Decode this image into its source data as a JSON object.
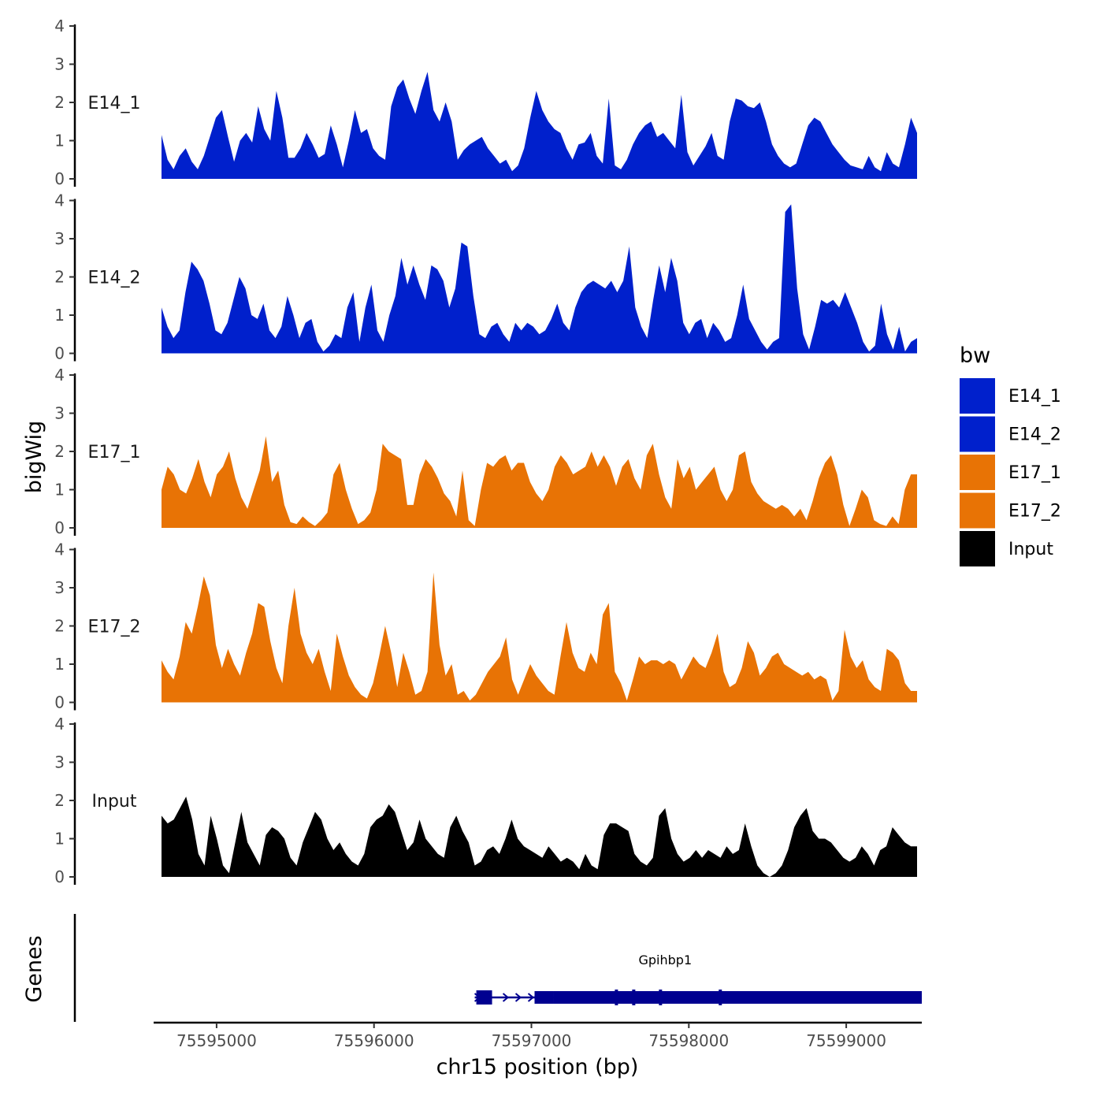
{
  "chart_data": {
    "type": "area",
    "subtype": "genome-browser-coverage-tracks",
    "xlabel": "chr15 position (bp)",
    "ylabel": "bigWig",
    "gene_track_label": "Genes",
    "xlim": [
      75594600,
      75599480
    ],
    "x_ticks": [
      75595000,
      75596000,
      75597000,
      75598000,
      75599000
    ],
    "x_tick_labels": [
      "75595000",
      "75596000",
      "75597000",
      "75598000",
      "75599000"
    ],
    "ylim": [
      0,
      4
    ],
    "y_ticks": [
      0,
      1,
      2,
      3,
      4
    ],
    "y_tick_labels": [
      "0",
      "1",
      "2",
      "3",
      "4"
    ],
    "legend": {
      "title": "bw",
      "position": "right",
      "entries": [
        {
          "label": "E14_1",
          "color": "#0020CC"
        },
        {
          "label": "E14_2",
          "color": "#0020CC"
        },
        {
          "label": "E17_1",
          "color": "#E87305"
        },
        {
          "label": "E17_2",
          "color": "#E87305"
        },
        {
          "label": "Input",
          "color": "#000000"
        }
      ]
    },
    "series": [
      {
        "name": "E14_1",
        "color": "#0020CC",
        "x_start": 75594650,
        "x_end": 75599450,
        "values": [
          1.15,
          0.5,
          0.25,
          0.6,
          0.8,
          0.45,
          0.25,
          0.6,
          1.1,
          1.6,
          1.8,
          1.1,
          0.45,
          1.0,
          1.2,
          0.95,
          1.9,
          1.3,
          1.0,
          2.3,
          1.6,
          0.55,
          0.55,
          0.8,
          1.2,
          0.9,
          0.55,
          0.65,
          1.4,
          0.9,
          0.3,
          1.0,
          1.8,
          1.2,
          1.3,
          0.8,
          0.6,
          0.5,
          1.9,
          2.4,
          2.6,
          2.1,
          1.7,
          2.3,
          2.8,
          1.8,
          1.5,
          2.0,
          1.5,
          0.5,
          0.75,
          0.9,
          1.0,
          1.1,
          0.8,
          0.6,
          0.4,
          0.5,
          0.2,
          0.35,
          0.8,
          1.6,
          2.3,
          1.8,
          1.5,
          1.3,
          1.2,
          0.8,
          0.5,
          0.9,
          0.95,
          1.2,
          0.6,
          0.4,
          2.1,
          0.35,
          0.25,
          0.5,
          0.9,
          1.2,
          1.4,
          1.5,
          1.1,
          1.2,
          1.0,
          0.8,
          2.2,
          0.7,
          0.35,
          0.6,
          0.85,
          1.2,
          0.6,
          0.5,
          1.5,
          2.1,
          2.05,
          1.9,
          1.85,
          2.0,
          1.5,
          0.9,
          0.6,
          0.4,
          0.3,
          0.4,
          0.9,
          1.4,
          1.6,
          1.5,
          1.2,
          0.9,
          0.7,
          0.5,
          0.35,
          0.3,
          0.25,
          0.6,
          0.3,
          0.2,
          0.7,
          0.4,
          0.3,
          0.9,
          1.6,
          1.2
        ]
      },
      {
        "name": "E14_2",
        "color": "#0020CC",
        "x_start": 75594650,
        "x_end": 75599450,
        "values": [
          1.2,
          0.7,
          0.4,
          0.6,
          1.6,
          2.4,
          2.2,
          1.9,
          1.3,
          0.6,
          0.5,
          0.8,
          1.4,
          2.0,
          1.7,
          1.0,
          0.9,
          1.3,
          0.6,
          0.4,
          0.7,
          1.5,
          1.0,
          0.4,
          0.8,
          0.9,
          0.3,
          0.05,
          0.2,
          0.5,
          0.4,
          1.2,
          1.6,
          0.3,
          1.2,
          1.8,
          0.6,
          0.3,
          1.0,
          1.5,
          2.5,
          1.8,
          2.3,
          1.8,
          1.4,
          2.3,
          2.2,
          1.9,
          1.2,
          1.7,
          2.9,
          2.8,
          1.5,
          0.5,
          0.4,
          0.7,
          0.8,
          0.5,
          0.3,
          0.8,
          0.6,
          0.8,
          0.7,
          0.5,
          0.6,
          0.9,
          1.3,
          0.8,
          0.6,
          1.2,
          1.6,
          1.8,
          1.9,
          1.8,
          1.7,
          1.9,
          1.6,
          1.9,
          2.8,
          1.2,
          0.7,
          0.4,
          1.4,
          2.3,
          1.6,
          2.5,
          1.9,
          0.8,
          0.5,
          0.8,
          0.9,
          0.4,
          0.8,
          0.6,
          0.3,
          0.4,
          1.0,
          1.8,
          0.9,
          0.6,
          0.3,
          0.1,
          0.3,
          0.4,
          3.7,
          3.9,
          1.7,
          0.5,
          0.1,
          0.7,
          1.4,
          1.3,
          1.4,
          1.2,
          1.6,
          1.2,
          0.8,
          0.3,
          0.05,
          0.2,
          1.3,
          0.5,
          0.1,
          0.7,
          0.05,
          0.3,
          0.4
        ]
      },
      {
        "name": "E17_1",
        "color": "#E87305",
        "x_start": 75594650,
        "x_end": 75599450,
        "values": [
          1.0,
          1.6,
          1.4,
          1.0,
          0.9,
          1.3,
          1.8,
          1.2,
          0.8,
          1.4,
          1.6,
          2.0,
          1.3,
          0.8,
          0.5,
          1.0,
          1.5,
          2.4,
          1.2,
          1.5,
          0.6,
          0.15,
          0.1,
          0.3,
          0.15,
          0.05,
          0.2,
          0.4,
          1.4,
          1.7,
          1.0,
          0.5,
          0.1,
          0.2,
          0.4,
          1.0,
          2.2,
          2.0,
          1.9,
          1.8,
          0.6,
          0.6,
          1.4,
          1.8,
          1.6,
          1.3,
          0.9,
          0.7,
          0.3,
          1.5,
          0.2,
          0.05,
          1.0,
          1.7,
          1.6,
          1.8,
          1.9,
          1.5,
          1.7,
          1.7,
          1.2,
          0.9,
          0.7,
          1.0,
          1.6,
          1.9,
          1.7,
          1.4,
          1.5,
          1.6,
          2.0,
          1.6,
          1.9,
          1.6,
          1.1,
          1.6,
          1.8,
          1.3,
          1.0,
          1.9,
          2.2,
          1.4,
          0.8,
          0.5,
          1.8,
          1.3,
          1.6,
          1.0,
          1.2,
          1.4,
          1.6,
          1.0,
          0.7,
          1.0,
          1.9,
          2.0,
          1.2,
          0.9,
          0.7,
          0.6,
          0.5,
          0.6,
          0.5,
          0.3,
          0.5,
          0.2,
          0.7,
          1.3,
          1.7,
          1.9,
          1.4,
          0.6,
          0.05,
          0.5,
          1.0,
          0.8,
          0.2,
          0.1,
          0.05,
          0.3,
          0.1,
          1.0,
          1.4,
          1.4
        ]
      },
      {
        "name": "E17_2",
        "color": "#E87305",
        "x_start": 75594650,
        "x_end": 75599450,
        "values": [
          1.1,
          0.8,
          0.6,
          1.2,
          2.1,
          1.8,
          2.5,
          3.3,
          2.8,
          1.5,
          0.9,
          1.4,
          1.0,
          0.7,
          1.3,
          1.8,
          2.6,
          2.5,
          1.6,
          0.9,
          0.5,
          2.0,
          3.0,
          1.8,
          1.3,
          1.0,
          1.4,
          0.8,
          0.3,
          1.8,
          1.2,
          0.7,
          0.4,
          0.2,
          0.1,
          0.5,
          1.2,
          2.0,
          1.3,
          0.4,
          1.3,
          0.8,
          0.2,
          0.3,
          0.8,
          3.4,
          1.5,
          0.7,
          1.0,
          0.2,
          0.3,
          0.05,
          0.2,
          0.5,
          0.8,
          1.0,
          1.2,
          1.7,
          0.6,
          0.2,
          0.6,
          1.0,
          0.7,
          0.5,
          0.3,
          0.2,
          1.2,
          2.1,
          1.3,
          0.9,
          0.8,
          1.3,
          1.0,
          2.3,
          2.6,
          0.8,
          0.5,
          0.05,
          0.6,
          1.2,
          1.0,
          1.1,
          1.1,
          1.0,
          1.1,
          1.0,
          0.6,
          0.9,
          1.2,
          1.0,
          0.9,
          1.3,
          1.8,
          0.8,
          0.4,
          0.5,
          0.9,
          1.6,
          1.3,
          0.7,
          0.9,
          1.2,
          1.3,
          1.0,
          0.9,
          0.8,
          0.7,
          0.8,
          0.6,
          0.7,
          0.6,
          0.05,
          0.3,
          1.9,
          1.2,
          0.9,
          1.1,
          0.6,
          0.4,
          0.3,
          1.4,
          1.3,
          1.1,
          0.5,
          0.3,
          0.3
        ]
      },
      {
        "name": "Input",
        "color": "#000000",
        "x_start": 75594650,
        "x_end": 75599450,
        "values": [
          1.6,
          1.4,
          1.5,
          1.8,
          2.1,
          1.5,
          0.6,
          0.3,
          1.6,
          1.0,
          0.3,
          0.1,
          0.9,
          1.7,
          0.9,
          0.6,
          0.3,
          1.1,
          1.3,
          1.2,
          1.0,
          0.5,
          0.3,
          0.9,
          1.3,
          1.7,
          1.5,
          1.0,
          0.7,
          0.9,
          0.6,
          0.4,
          0.3,
          0.6,
          1.3,
          1.5,
          1.6,
          1.9,
          1.7,
          1.2,
          0.7,
          0.9,
          1.5,
          1.0,
          0.8,
          0.6,
          0.5,
          1.3,
          1.6,
          1.2,
          0.9,
          0.3,
          0.4,
          0.7,
          0.8,
          0.6,
          1.0,
          1.5,
          1.0,
          0.8,
          0.7,
          0.6,
          0.5,
          0.8,
          0.6,
          0.4,
          0.5,
          0.4,
          0.2,
          0.6,
          0.3,
          0.2,
          1.1,
          1.4,
          1.4,
          1.3,
          1.2,
          0.6,
          0.4,
          0.3,
          0.5,
          1.6,
          1.8,
          1.0,
          0.6,
          0.4,
          0.5,
          0.7,
          0.5,
          0.7,
          0.6,
          0.5,
          0.8,
          0.6,
          0.7,
          1.4,
          0.8,
          0.3,
          0.1,
          0.0,
          0.1,
          0.3,
          0.7,
          1.3,
          1.6,
          1.8,
          1.2,
          1.0,
          1.0,
          0.9,
          0.7,
          0.5,
          0.4,
          0.5,
          0.8,
          0.6,
          0.3,
          0.7,
          0.8,
          1.3,
          1.1,
          0.9,
          0.8,
          0.8
        ]
      }
    ],
    "genes": [
      {
        "name": "Gpihbp1",
        "color": "#000090",
        "strand": "+",
        "start": 75596640,
        "end": 75599480,
        "exons": [
          [
            75596650,
            75596750
          ],
          [
            75597020,
            75597140
          ],
          [
            75597140,
            75598200
          ],
          [
            75598200,
            75599480
          ]
        ],
        "exon_boundaries": [
          75597540,
          75597650,
          75597820,
          75598200
        ]
      }
    ]
  }
}
